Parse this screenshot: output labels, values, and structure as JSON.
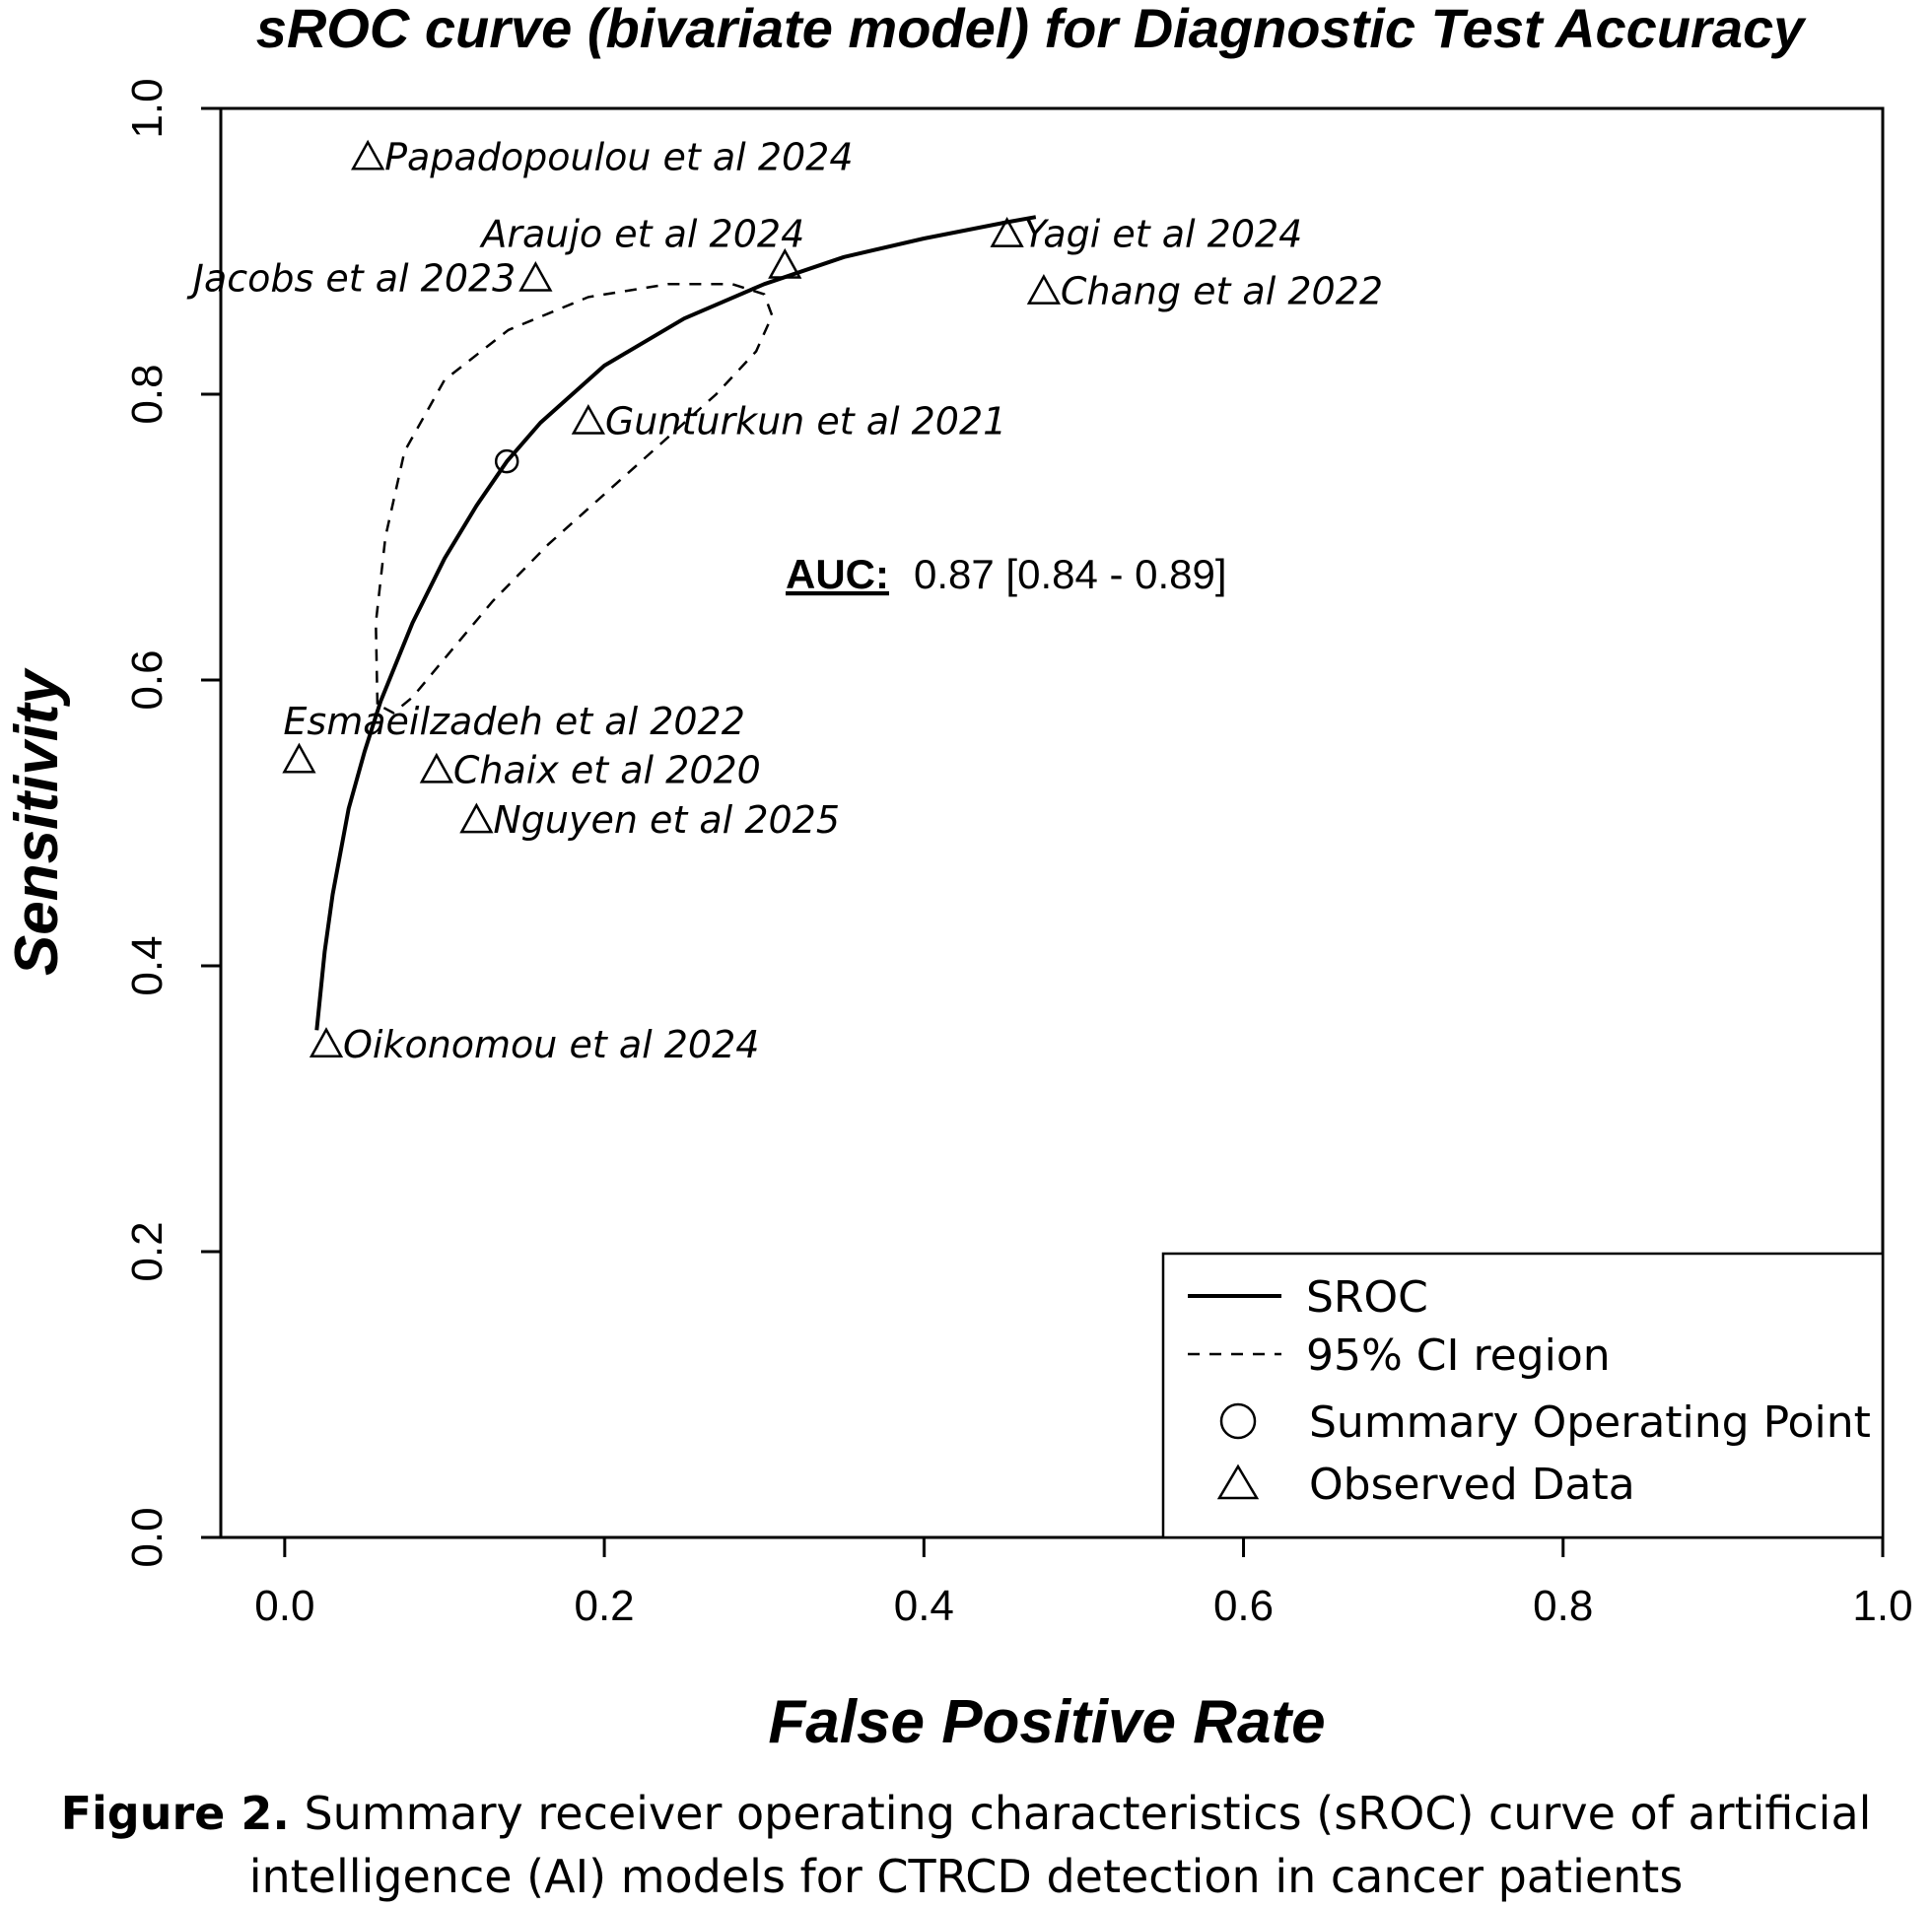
{
  "chart_data": {
    "type": "scatter",
    "title": "sROC curve (bivariate model) for Diagnostic Test Accuracy",
    "xlabel": "False Positive Rate",
    "ylabel": "Sensitivity",
    "xlim": [
      -0.04,
      1.0
    ],
    "ylim": [
      0.0,
      1.0
    ],
    "xticks": [
      0.0,
      0.2,
      0.4,
      0.6,
      0.8,
      1.0
    ],
    "yticks": [
      0.0,
      0.2,
      0.4,
      0.6,
      0.8,
      1.0
    ],
    "xtick_labels": [
      "0.0",
      "0.2",
      "0.4",
      "0.6",
      "0.8",
      "1.0"
    ],
    "ytick_labels": [
      "0.0",
      "0.2",
      "0.4",
      "0.6",
      "0.8",
      "1.0"
    ],
    "grid": false,
    "legend_position": "bottom-right",
    "legend": [
      {
        "label": "SROC",
        "style": "solid-line"
      },
      {
        "label": "95% CI region",
        "style": "dashed-line"
      },
      {
        "label": "Summary Operating Point",
        "style": "circle"
      },
      {
        "label": "Observed Data",
        "style": "triangle"
      }
    ],
    "auc": {
      "label": "AUC:",
      "value": "0.87 [0.84 - 0.89]"
    },
    "summary_point": {
      "x": 0.139,
      "y": 0.753
    },
    "sroc_curve": [
      {
        "x": 0.02,
        "y": 0.355
      },
      {
        "x": 0.025,
        "y": 0.41
      },
      {
        "x": 0.03,
        "y": 0.45
      },
      {
        "x": 0.04,
        "y": 0.51
      },
      {
        "x": 0.05,
        "y": 0.55
      },
      {
        "x": 0.06,
        "y": 0.585
      },
      {
        "x": 0.08,
        "y": 0.64
      },
      {
        "x": 0.1,
        "y": 0.685
      },
      {
        "x": 0.12,
        "y": 0.722
      },
      {
        "x": 0.139,
        "y": 0.753
      },
      {
        "x": 0.16,
        "y": 0.78
      },
      {
        "x": 0.2,
        "y": 0.82
      },
      {
        "x": 0.25,
        "y": 0.853
      },
      {
        "x": 0.3,
        "y": 0.877
      },
      {
        "x": 0.35,
        "y": 0.896
      },
      {
        "x": 0.4,
        "y": 0.909
      },
      {
        "x": 0.45,
        "y": 0.92
      },
      {
        "x": 0.47,
        "y": 0.924
      }
    ],
    "ci_region": [
      {
        "x": 0.058,
        "y": 0.583
      },
      {
        "x": 0.057,
        "y": 0.64
      },
      {
        "x": 0.063,
        "y": 0.7
      },
      {
        "x": 0.075,
        "y": 0.76
      },
      {
        "x": 0.1,
        "y": 0.81
      },
      {
        "x": 0.14,
        "y": 0.845
      },
      {
        "x": 0.19,
        "y": 0.868
      },
      {
        "x": 0.24,
        "y": 0.877
      },
      {
        "x": 0.28,
        "y": 0.877
      },
      {
        "x": 0.3,
        "y": 0.87
      },
      {
        "x": 0.305,
        "y": 0.855
      },
      {
        "x": 0.295,
        "y": 0.83
      },
      {
        "x": 0.27,
        "y": 0.8
      },
      {
        "x": 0.235,
        "y": 0.765
      },
      {
        "x": 0.2,
        "y": 0.73
      },
      {
        "x": 0.165,
        "y": 0.695
      },
      {
        "x": 0.13,
        "y": 0.655
      },
      {
        "x": 0.1,
        "y": 0.615
      },
      {
        "x": 0.08,
        "y": 0.588
      },
      {
        "x": 0.068,
        "y": 0.577
      },
      {
        "x": 0.058,
        "y": 0.583
      }
    ],
    "studies": [
      {
        "label": "Papadopoulou et al 2024",
        "x": 0.052,
        "y": 0.966,
        "label_side": "right"
      },
      {
        "label": "Araujo et al 2024",
        "x": 0.313,
        "y": 0.89,
        "label_side": "above-left"
      },
      {
        "label": "Jacobs et al 2023",
        "x": 0.157,
        "y": 0.881,
        "label_side": "left"
      },
      {
        "label": "Yagi et al 2024",
        "x": 0.452,
        "y": 0.912,
        "label_side": "right"
      },
      {
        "label": "Chang et al 2022",
        "x": 0.475,
        "y": 0.872,
        "label_side": "right"
      },
      {
        "label": "Gunturkun et al 2021",
        "x": 0.19,
        "y": 0.781,
        "label_side": "right"
      },
      {
        "label": "Esmaeilzadeh et al 2022",
        "x": 0.009,
        "y": 0.544,
        "label_side": "above-right"
      },
      {
        "label": "Chaix et al 2020",
        "x": 0.095,
        "y": 0.537,
        "label_side": "right"
      },
      {
        "label": "Nguyen et al 2025",
        "x": 0.12,
        "y": 0.502,
        "label_side": "right"
      },
      {
        "label": "Oikonomou et al 2024",
        "x": 0.026,
        "y": 0.345,
        "label_side": "right"
      }
    ]
  },
  "caption": {
    "label": "Figure 2.",
    "text": " Summary receiver operating characteristics (sROC) curve of artificial intelligence (AI) models for CTRCD detection in cancer patients"
  }
}
